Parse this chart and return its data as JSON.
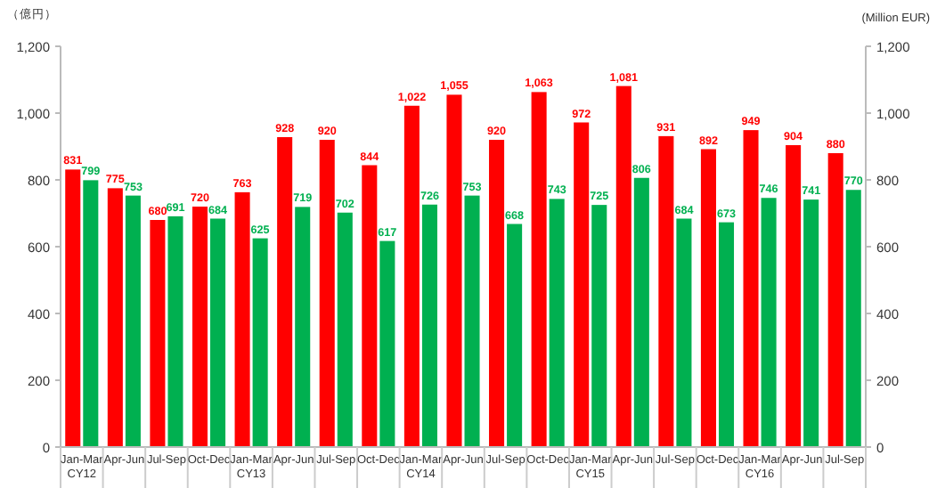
{
  "chart_data": {
    "type": "bar",
    "ylabel": "（億円）",
    "y2label": "(Million EUR)",
    "categories": [
      "Jan-Mar\nCY12",
      "Apr-Jun",
      "Jul-Sep",
      "Oct-Dec",
      "Jan-Mar\nCY13",
      "Apr-Jun",
      "Jul-Sep",
      "Oct-Dec",
      "Jan-Mar\nCY14",
      "Apr-Jun",
      "Jul-Sep",
      "Oct-Dec",
      "Jan-Mar\nCY15",
      "Apr-Jun",
      "Jul-Sep",
      "Oct-Dec",
      "Jan-Mar\nCY16",
      "Apr-Jun",
      "Jul-Sep"
    ],
    "series": [
      {
        "color": "#ff0000",
        "values": [
          831,
          775,
          680,
          720,
          763,
          928,
          920,
          844,
          1022,
          1055,
          920,
          1063,
          972,
          1081,
          931,
          892,
          949,
          904,
          880
        ],
        "value_labels": [
          "831",
          "775",
          "680",
          "720",
          "763",
          "928",
          "920",
          "844",
          "1,022",
          "1,055",
          "920",
          "1,063",
          "972",
          "1,081",
          "931",
          "892",
          "949",
          "904",
          "880"
        ]
      },
      {
        "color": "#00b050",
        "values": [
          799,
          753,
          691,
          684,
          625,
          719,
          702,
          617,
          726,
          753,
          668,
          743,
          725,
          806,
          684,
          673,
          746,
          741,
          770
        ],
        "value_labels": [
          "799",
          "753",
          "691",
          "684",
          "625",
          "719",
          "702",
          "617",
          "726",
          "753",
          "668",
          "743",
          "725",
          "806",
          "684",
          "673",
          "746",
          "741",
          "770"
        ]
      }
    ],
    "ylim": [
      0,
      1200
    ],
    "yticks": [
      0,
      200,
      400,
      600,
      800,
      {
        "value": 1000,
        "label": "1,000"
      },
      {
        "value": 1200,
        "label": "1,200"
      }
    ],
    "y2lim": [
      0,
      1200
    ],
    "y2ticks": [
      0,
      200,
      400,
      600,
      800,
      {
        "value": 1000,
        "label": "1,000"
      },
      {
        "value": 1200,
        "label": "1,200"
      }
    ],
    "grid": false
  }
}
